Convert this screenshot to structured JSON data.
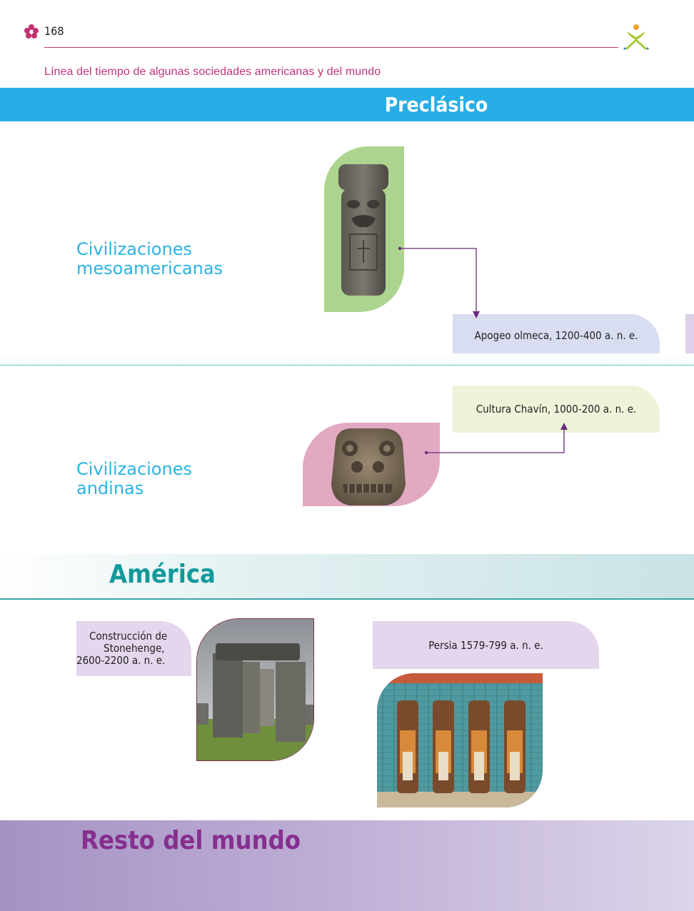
{
  "header": {
    "page_number": "168",
    "subtitle": "Línea del tiempo de algunas sociedades americanas y del mundo"
  },
  "period": {
    "title": "Preclásico"
  },
  "regions": {
    "mesoamerica": {
      "line1": "Civilizaciones",
      "line2": "mesoamericanas"
    },
    "andes": {
      "line1": "Civilizaciones",
      "line2": "andinas"
    }
  },
  "events": {
    "olmec": "Apogeo olmeca, 1200-400 a. n. e.",
    "chavin": "Cultura Chavín, 1000-200 a. n. e.",
    "stonehenge": {
      "line1": "Construcción de",
      "line2": "Stonehenge,",
      "line3": "2600-2200 a. n. e."
    },
    "persia": "Persia 1579-799 a. n. e."
  },
  "bands": {
    "america": "América",
    "rest_of_world": "Resto del mundo"
  },
  "colors": {
    "period_blue": "#27aee6",
    "subtitle_pink": "#c03478",
    "region_cyan": "#2bb3e3",
    "america_teal": "#11999b",
    "world_purple": "#862f8f",
    "connector_purple": "#6a2a7a"
  },
  "icons": {
    "left_logo": "flower-logo-icon",
    "right_logo": "person-sprout-logo-icon"
  }
}
